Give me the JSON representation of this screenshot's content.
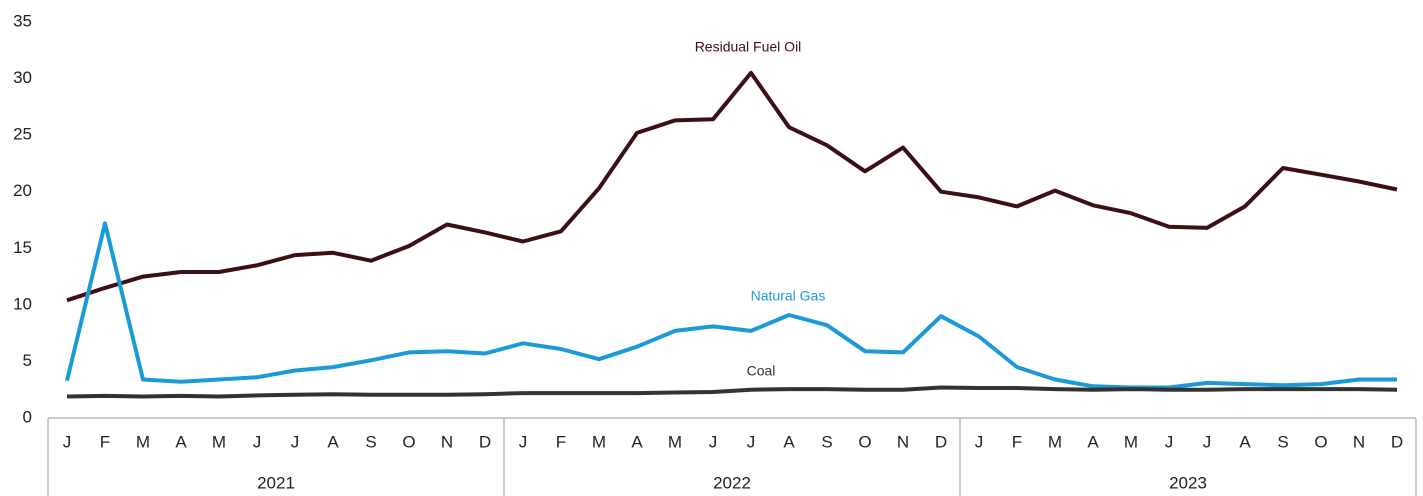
{
  "chart_data": {
    "type": "line",
    "categories": [
      "J",
      "F",
      "M",
      "A",
      "M",
      "J",
      "J",
      "A",
      "S",
      "O",
      "N",
      "D",
      "J",
      "F",
      "M",
      "A",
      "M",
      "J",
      "J",
      "A",
      "S",
      "O",
      "N",
      "D",
      "J",
      "F",
      "M",
      "A",
      "M",
      "J",
      "J",
      "A",
      "S",
      "O",
      "N",
      "D"
    ],
    "groups": [
      "2021",
      "2022",
      "2023"
    ],
    "ylim": [
      0,
      35
    ],
    "yticks": [
      0,
      5,
      10,
      15,
      20,
      25,
      30,
      35
    ],
    "grid": false,
    "series": [
      {
        "name": "Residual Fuel Oil",
        "color": "#3d0f14",
        "values": [
          10.4,
          11.5,
          12.5,
          12.9,
          12.9,
          13.5,
          14.4,
          14.6,
          13.9,
          15.2,
          17.1,
          16.4,
          15.6,
          16.5,
          20.3,
          25.2,
          26.3,
          26.4,
          30.5,
          25.7,
          24.1,
          21.8,
          23.9,
          20.0,
          19.5,
          18.7,
          20.1,
          18.8,
          18.1,
          16.9,
          16.8,
          18.7,
          22.1,
          21.5,
          20.9,
          20.2
        ]
      },
      {
        "name": "Natural Gas",
        "color": "#1a9ad6",
        "values": [
          3.3,
          17.2,
          3.4,
          3.2,
          3.4,
          3.6,
          4.2,
          4.5,
          5.1,
          5.8,
          5.9,
          5.7,
          6.6,
          6.1,
          5.2,
          6.3,
          7.7,
          8.1,
          7.7,
          9.1,
          8.2,
          5.9,
          5.8,
          9.0,
          7.2,
          4.5,
          3.4,
          2.8,
          2.7,
          2.7,
          3.1,
          3.0,
          2.9,
          3.0,
          3.4,
          3.4
        ]
      },
      {
        "name": "Coal",
        "color": "#333333",
        "values": [
          1.9,
          1.95,
          1.9,
          1.95,
          1.9,
          2.0,
          2.05,
          2.1,
          2.05,
          2.05,
          2.05,
          2.1,
          2.2,
          2.2,
          2.2,
          2.2,
          2.25,
          2.3,
          2.5,
          2.55,
          2.55,
          2.5,
          2.5,
          2.7,
          2.65,
          2.65,
          2.55,
          2.5,
          2.55,
          2.5,
          2.5,
          2.55,
          2.55,
          2.55,
          2.55,
          2.5
        ]
      }
    ]
  }
}
